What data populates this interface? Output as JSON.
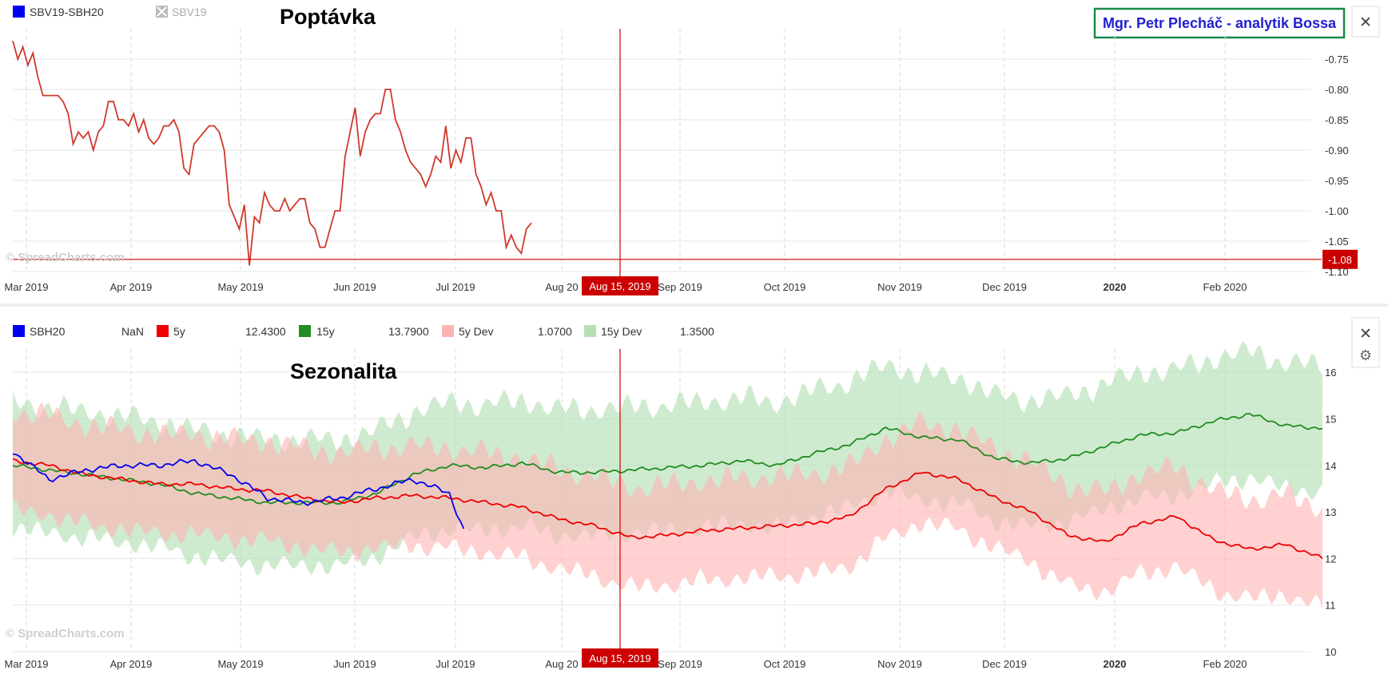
{
  "colors": {
    "ratio_line": "#d0392b",
    "sbh20": "#0000ee",
    "five_y": "#ee0000",
    "fifteen_y": "#228b22",
    "five_y_band": "#ffb3b3",
    "fifteen_y_band": "#b5e0b5",
    "cursor": "#cc0000",
    "author_border": "#1a8a4a",
    "author_text": "#1f1fd0"
  },
  "cursor_label": "Aug 15, 2019",
  "x_ticks": [
    {
      "label": "Mar 2019",
      "bold": false
    },
    {
      "label": "Apr 2019",
      "bold": false
    },
    {
      "label": "May 2019",
      "bold": false
    },
    {
      "label": "Jun 2019",
      "bold": false
    },
    {
      "label": "Jul 2019",
      "bold": false
    },
    {
      "label": "Aug 20",
      "bold": false
    },
    {
      "label": "Sep 2019",
      "bold": false
    },
    {
      "label": "Oct 2019",
      "bold": false
    },
    {
      "label": "Nov 2019",
      "bold": false
    },
    {
      "label": "Dec 2019",
      "bold": false
    },
    {
      "label": "2020",
      "bold": true
    },
    {
      "label": "Feb 2020",
      "bold": false
    }
  ],
  "top_panel": {
    "title": "Poptávka",
    "author_box": "Mgr. Petr Plecháč - analytik Bossa",
    "watermark": "© SpreadCharts.com",
    "legend": [
      {
        "label": "SBV19-SBH20",
        "color": "#0000ee",
        "muted": false
      },
      {
        "label": "SBV19",
        "color": "#bbbbbb",
        "muted": true
      }
    ],
    "close_icon": "close-icon",
    "chart_data": {
      "type": "line",
      "series": [
        {
          "name": "SBV19-SBH20",
          "color": "#d0392b"
        }
      ],
      "ylim": [
        -1.1,
        -0.7
      ],
      "y_ticks": [
        "-0.75",
        "-0.80",
        "-0.85",
        "-0.90",
        "-0.95",
        "-1.00",
        "-1.05",
        "-1.10"
      ],
      "last_value_label": "-1.08",
      "last_value": -1.08,
      "values": [
        -0.72,
        -0.75,
        -0.73,
        -0.76,
        -0.74,
        -0.78,
        -0.81,
        -0.81,
        -0.81,
        -0.81,
        -0.82,
        -0.84,
        -0.89,
        -0.87,
        -0.88,
        -0.87,
        -0.9,
        -0.87,
        -0.86,
        -0.82,
        -0.82,
        -0.85,
        -0.85,
        -0.86,
        -0.84,
        -0.87,
        -0.85,
        -0.88,
        -0.89,
        -0.88,
        -0.86,
        -0.86,
        -0.85,
        -0.87,
        -0.93,
        -0.94,
        -0.89,
        -0.88,
        -0.87,
        -0.86,
        -0.86,
        -0.87,
        -0.9,
        -0.99,
        -1.01,
        -1.03,
        -0.99,
        -1.09,
        -1.01,
        -1.02,
        -0.97,
        -0.99,
        -1.0,
        -1.0,
        -0.98,
        -1.0,
        -0.99,
        -0.98,
        -0.98,
        -1.02,
        -1.03,
        -1.06,
        -1.06,
        -1.03,
        -1.0,
        -1.0,
        -0.91,
        -0.87,
        -0.83,
        -0.91,
        -0.87,
        -0.85,
        -0.84,
        -0.84,
        -0.8,
        -0.8,
        -0.85,
        -0.87,
        -0.9,
        -0.92,
        -0.93,
        -0.94,
        -0.96,
        -0.94,
        -0.91,
        -0.92,
        -0.86,
        -0.93,
        -0.9,
        -0.92,
        -0.88,
        -0.88,
        -0.94,
        -0.96,
        -0.99,
        -0.97,
        -1.0,
        -1.0,
        -1.06,
        -1.04,
        -1.06,
        -1.07,
        -1.03,
        -1.02
      ]
    }
  },
  "bottom_panel": {
    "title": "Sezonalita",
    "watermark": "© SpreadCharts.com",
    "legend": [
      {
        "label": "SBH20",
        "value": "NaN",
        "color": "#0000ee"
      },
      {
        "label": "5y",
        "value": "12.4300",
        "color": "#ee0000"
      },
      {
        "label": "15y",
        "value": "13.7900",
        "color": "#228b22"
      },
      {
        "label": "5y Dev",
        "value": "1.0700",
        "color": "#ffb3b3"
      },
      {
        "label": "15y Dev",
        "value": "1.3500",
        "color": "#b5e0b5"
      }
    ],
    "close_icon": "close-icon",
    "gear_icon": "gear-icon",
    "chart_data": {
      "type": "line",
      "ylim": [
        10,
        16.5
      ],
      "y_ticks": [
        "16",
        "15",
        "14",
        "13",
        "12",
        "11",
        "10"
      ],
      "n_days": 360,
      "sbh20_days": 124,
      "five_y_anchors": [
        [
          0,
          14.1
        ],
        [
          10,
          14.0
        ],
        [
          20,
          13.8
        ],
        [
          30,
          13.7
        ],
        [
          40,
          13.6
        ],
        [
          50,
          13.6
        ],
        [
          60,
          13.5
        ],
        [
          70,
          13.45
        ],
        [
          80,
          13.3
        ],
        [
          90,
          13.2
        ],
        [
          100,
          13.3
        ],
        [
          110,
          13.35
        ],
        [
          120,
          13.3
        ],
        [
          130,
          13.2
        ],
        [
          140,
          13.1
        ],
        [
          150,
          12.85
        ],
        [
          160,
          12.7
        ],
        [
          170,
          12.45
        ],
        [
          180,
          12.5
        ],
        [
          190,
          12.6
        ],
        [
          200,
          12.65
        ],
        [
          210,
          12.7
        ],
        [
          220,
          12.75
        ],
        [
          230,
          12.9
        ],
        [
          240,
          13.5
        ],
        [
          250,
          13.85
        ],
        [
          260,
          13.7
        ],
        [
          270,
          13.3
        ],
        [
          280,
          13.0
        ],
        [
          290,
          12.5
        ],
        [
          300,
          12.35
        ],
        [
          310,
          12.75
        ],
        [
          320,
          12.9
        ],
        [
          330,
          12.4
        ],
        [
          340,
          12.2
        ],
        [
          350,
          12.3
        ],
        [
          360,
          12.0
        ]
      ],
      "fifteen_y_anchors": [
        [
          0,
          14.0
        ],
        [
          10,
          13.9
        ],
        [
          20,
          13.8
        ],
        [
          30,
          13.7
        ],
        [
          40,
          13.6
        ],
        [
          50,
          13.4
        ],
        [
          60,
          13.3
        ],
        [
          70,
          13.2
        ],
        [
          80,
          13.2
        ],
        [
          90,
          13.2
        ],
        [
          100,
          13.4
        ],
        [
          110,
          13.8
        ],
        [
          120,
          14.0
        ],
        [
          130,
          13.95
        ],
        [
          140,
          14.05
        ],
        [
          150,
          13.85
        ],
        [
          160,
          13.85
        ],
        [
          170,
          13.9
        ],
        [
          180,
          13.95
        ],
        [
          190,
          14.0
        ],
        [
          200,
          14.1
        ],
        [
          210,
          14.0
        ],
        [
          220,
          14.25
        ],
        [
          230,
          14.45
        ],
        [
          240,
          14.8
        ],
        [
          250,
          14.6
        ],
        [
          260,
          14.55
        ],
        [
          270,
          14.15
        ],
        [
          280,
          14.05
        ],
        [
          290,
          14.15
        ],
        [
          300,
          14.4
        ],
        [
          310,
          14.65
        ],
        [
          320,
          14.7
        ],
        [
          330,
          14.95
        ],
        [
          340,
          15.1
        ],
        [
          350,
          14.85
        ],
        [
          360,
          14.8
        ]
      ],
      "five_y_dev": 1.07,
      "fifteen_y_dev": 1.35,
      "sbh20_anchors": [
        [
          0,
          14.3
        ],
        [
          10,
          13.7
        ],
        [
          20,
          13.9
        ],
        [
          30,
          14.0
        ],
        [
          40,
          14.0
        ],
        [
          50,
          14.1
        ],
        [
          60,
          13.8
        ],
        [
          70,
          13.3
        ],
        [
          80,
          13.2
        ],
        [
          90,
          13.3
        ],
        [
          100,
          13.5
        ],
        [
          110,
          13.7
        ],
        [
          120,
          13.4
        ],
        [
          124,
          12.6
        ]
      ]
    }
  }
}
